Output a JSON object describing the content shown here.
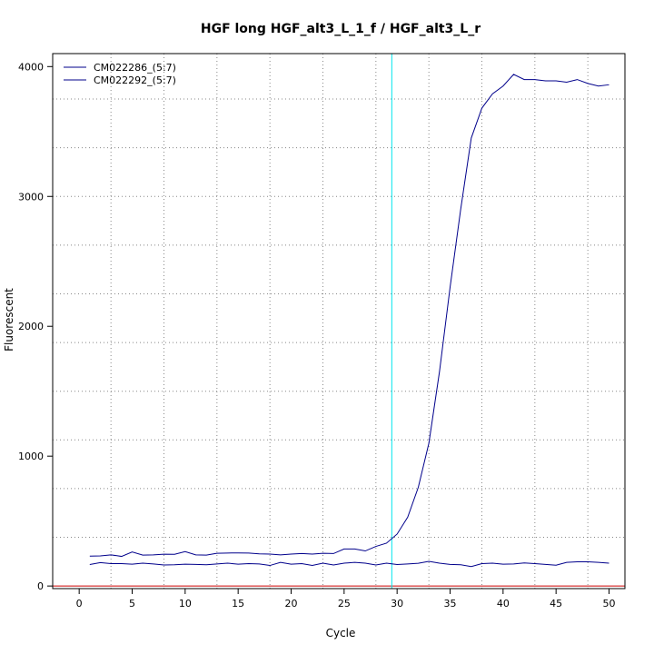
{
  "chart_data": {
    "type": "line",
    "title": "HGF long HGF_alt3_L_1_f / HGF_alt3_L_r",
    "xlabel": "Cycle",
    "ylabel": "Fluorescent",
    "xlim": [
      -2.5,
      51.5
    ],
    "ylim": [
      -20,
      4100
    ],
    "x_ticks": [
      0,
      5,
      10,
      15,
      20,
      25,
      30,
      35,
      40,
      45,
      50
    ],
    "y_ticks": [
      0,
      1000,
      2000,
      3000,
      4000
    ],
    "x_grid": [
      3,
      8,
      13,
      18,
      23,
      28,
      33,
      38,
      43,
      48
    ],
    "y_grid": [
      375,
      750,
      1125,
      1500,
      1875,
      2250,
      2625,
      3000,
      3375,
      3750
    ],
    "grid": true,
    "legend_position": "top-left",
    "threshold_x": 29.5,
    "threshold_color": "#00e5ee",
    "baseline_color": "#cc0000",
    "series_color": "#00008b",
    "x": [
      1,
      2,
      3,
      4,
      5,
      6,
      7,
      8,
      9,
      10,
      11,
      12,
      13,
      14,
      15,
      16,
      17,
      18,
      19,
      20,
      21,
      22,
      23,
      24,
      25,
      26,
      27,
      28,
      29,
      30,
      31,
      32,
      33,
      34,
      35,
      36,
      37,
      38,
      39,
      40,
      41,
      42,
      43,
      44,
      45,
      46,
      47,
      48,
      49,
      50
    ],
    "series": [
      {
        "name": "CM022286_(5:7)",
        "values": [
          230,
          232,
          240,
          228,
          262,
          238,
          240,
          245,
          244,
          265,
          240,
          238,
          252,
          254,
          255,
          254,
          248,
          246,
          240,
          246,
          250,
          246,
          252,
          250,
          285,
          285,
          270,
          305,
          330,
          400,
          530,
          760,
          1100,
          1650,
          2300,
          2900,
          3450,
          3680,
          3790,
          3850,
          3940,
          3900,
          3900,
          3890,
          3890,
          3880,
          3900,
          3870,
          3850,
          3860
        ]
      },
      {
        "name": "CM022292_(5:7)",
        "values": [
          165,
          180,
          172,
          172,
          168,
          176,
          170,
          162,
          164,
          168,
          166,
          164,
          170,
          176,
          168,
          172,
          170,
          158,
          182,
          168,
          172,
          158,
          176,
          162,
          176,
          182,
          176,
          162,
          176,
          165,
          170,
          175,
          190,
          176,
          166,
          164,
          150,
          172,
          176,
          168,
          170,
          178,
          172,
          166,
          160,
          182,
          186,
          186,
          182,
          176
        ]
      }
    ]
  }
}
